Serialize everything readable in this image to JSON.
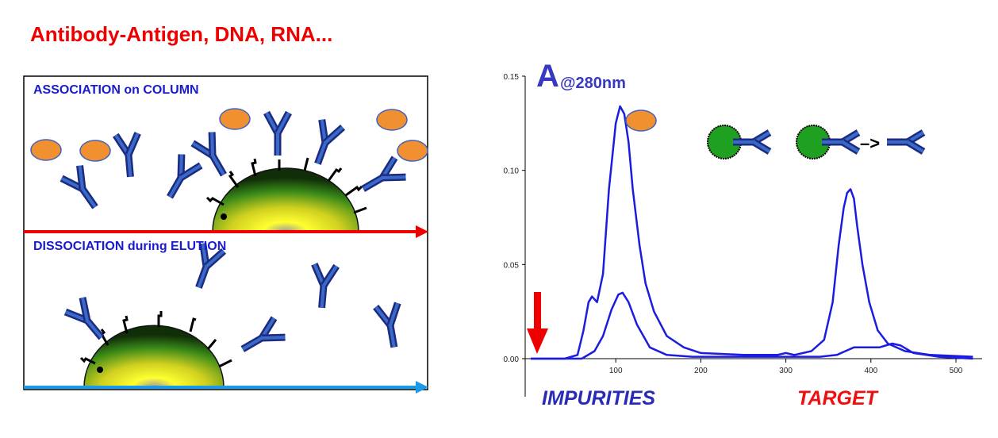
{
  "title": "Antibody-Antigen, DNA, RNA...",
  "panels": {
    "association_label": "ASSOCIATION on COLUMN",
    "dissociation_label": "DISSOCIATION during ELUTION"
  },
  "chromatogram": {
    "absorbance_label_big": "A",
    "absorbance_label_small": "@280nm",
    "impurities_label": "IMPURITIES",
    "target_label": "TARGET",
    "binding_arrow_text": "–>"
  },
  "colors": {
    "title": "#ee0000",
    "label_blue": "#1a1ad0",
    "trace": "#1c1ce0",
    "antigen_orange": "#f09030",
    "bead_green": "#20a020",
    "association_arrow": "#ee0000",
    "elution_arrow": "#1a9ae8",
    "start_arrow": "#ee0000",
    "target_text": "#ee1010"
  },
  "chart_data": {
    "type": "line",
    "title": "",
    "xlabel": "",
    "ylabel": "A@280nm",
    "xlim": [
      0,
      520
    ],
    "ylim": [
      0,
      0.15
    ],
    "x_ticks": [
      "100",
      "200",
      "300",
      "400",
      "500"
    ],
    "y_ticks": [
      "0.00",
      "0.05",
      "0.10",
      "0.15"
    ],
    "x_tick_values": [
      100,
      200,
      300,
      400,
      500
    ],
    "y_tick_values": [
      0,
      0.05,
      0.1,
      0.15
    ],
    "series": [
      {
        "x": [
          0,
          40,
          55,
          62,
          68,
          72,
          78,
          85,
          92,
          100,
          105,
          110,
          115,
          120,
          128,
          135,
          145,
          160,
          180,
          200,
          250,
          290,
          300,
          310,
          330,
          345,
          355,
          362,
          368,
          372,
          376,
          380,
          384,
          390,
          398,
          408,
          420,
          440,
          470,
          520
        ],
        "y": [
          0.0,
          0.0,
          0.002,
          0.015,
          0.03,
          0.033,
          0.03,
          0.045,
          0.09,
          0.125,
          0.134,
          0.13,
          0.115,
          0.09,
          0.06,
          0.04,
          0.025,
          0.012,
          0.006,
          0.003,
          0.002,
          0.002,
          0.003,
          0.002,
          0.004,
          0.01,
          0.03,
          0.06,
          0.08,
          0.088,
          0.09,
          0.085,
          0.07,
          0.05,
          0.03,
          0.015,
          0.008,
          0.004,
          0.002,
          0.001
        ]
      },
      {
        "x": [
          0,
          60,
          75,
          85,
          95,
          103,
          108,
          115,
          125,
          140,
          160,
          190,
          250,
          300,
          340,
          360,
          370,
          380,
          390,
          410,
          425,
          435,
          450,
          480,
          520
        ],
        "y": [
          0.0,
          0.0,
          0.004,
          0.012,
          0.026,
          0.034,
          0.035,
          0.03,
          0.018,
          0.006,
          0.002,
          0.001,
          0.001,
          0.001,
          0.001,
          0.002,
          0.004,
          0.006,
          0.006,
          0.006,
          0.008,
          0.007,
          0.003,
          0.001,
          0.0
        ]
      }
    ]
  }
}
